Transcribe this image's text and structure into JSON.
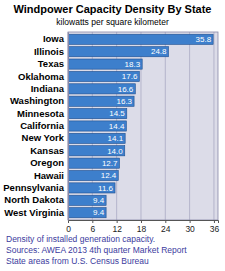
{
  "chart_data": {
    "type": "bar",
    "orientation": "horizontal",
    "title": "Windpower Capacity Density By State",
    "subtitle": "kilowatts per square kilometer",
    "categories": [
      "Iowa",
      "Illinois",
      "Texas",
      "Oklahoma",
      "Indiana",
      "Washington",
      "Minnesota",
      "California",
      "New York",
      "Kansas",
      "Oregon",
      "Hawaii",
      "Pennsylvania",
      "North Dakota",
      "West Virginia"
    ],
    "values": [
      35.8,
      24.8,
      18.3,
      17.6,
      16.6,
      16.3,
      14.5,
      14.4,
      14.1,
      14.0,
      12.7,
      12.4,
      11.6,
      9.4,
      9.4
    ],
    "value_labels": [
      "35.8",
      "24.8",
      "18.3",
      "17.6",
      "16.6",
      "16.3",
      "14.5",
      "14.4",
      "14.1",
      "14.0",
      "12.7",
      "12.4",
      "11.6",
      "9.4",
      "9.4"
    ],
    "color": "#3d7fcc",
    "xlim": [
      0,
      37
    ],
    "xticks": [
      0,
      6,
      12,
      18,
      24,
      30,
      36
    ],
    "grid": true,
    "data_labels": true,
    "annotations": [
      "Density of installed generation capacity.",
      "Sources: AWEA 2013 4th quarter Market Report",
      "State areas from U.S. Census Bureau"
    ]
  }
}
